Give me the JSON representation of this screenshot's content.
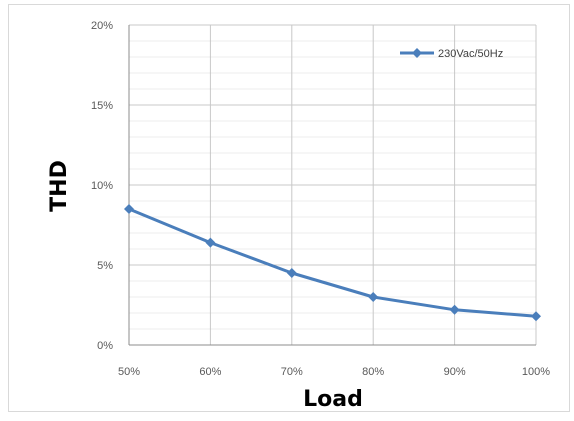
{
  "chart_data": {
    "type": "line",
    "title": "",
    "xlabel": "Load",
    "ylabel": "THD",
    "categories": [
      "50%",
      "60%",
      "70%",
      "80%",
      "90%",
      "100%"
    ],
    "x_tick_labels": [
      "50%",
      "60%",
      "70%",
      "80%",
      "90%",
      "100%"
    ],
    "y_tick_labels": [
      "0%",
      "5%",
      "10%",
      "15%",
      "20%"
    ],
    "y_ticks": [
      0,
      5,
      10,
      15,
      20
    ],
    "ylim": [
      0,
      20
    ],
    "grid": true,
    "legend_position": "top-right",
    "series": [
      {
        "name": "230Vac/50Hz",
        "color": "#4a7ebb",
        "marker": "diamond",
        "values": [
          8.5,
          6.4,
          4.5,
          3.0,
          2.2,
          1.8
        ]
      }
    ]
  }
}
